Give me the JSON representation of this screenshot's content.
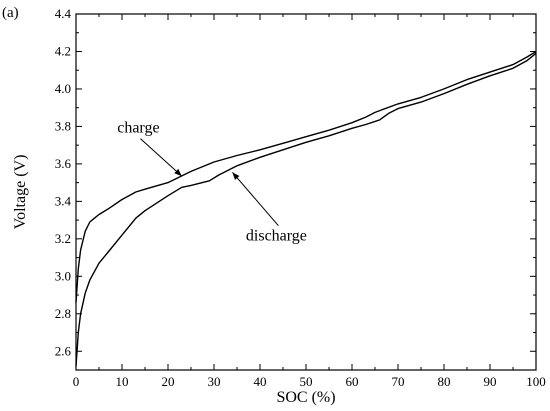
{
  "panel_label": "(a)",
  "chart_data": {
    "type": "line",
    "xlabel": "SOC (%)",
    "ylabel": "Voltage (V)",
    "xlim": [
      0,
      100
    ],
    "ylim": [
      2.5,
      4.4
    ],
    "xticks": [
      0,
      10,
      20,
      30,
      40,
      50,
      60,
      70,
      80,
      90,
      100
    ],
    "yticks": [
      2.6,
      2.8,
      3.0,
      3.2,
      3.4,
      3.6,
      3.8,
      4.0,
      4.2,
      4.4
    ],
    "xtick_labels": [
      "0",
      "10",
      "20",
      "30",
      "40",
      "50",
      "60",
      "70",
      "80",
      "90",
      "100"
    ],
    "ytick_labels": [
      "2.6",
      "2.8",
      "3.0",
      "3.2",
      "3.4",
      "3.6",
      "3.8",
      "4.0",
      "4.2",
      "4.4"
    ],
    "grid": false,
    "series": [
      {
        "x": [
          0,
          0.5,
          1,
          2,
          3,
          4,
          5,
          7,
          10,
          13,
          15,
          20,
          25,
          30,
          35,
          40,
          45,
          50,
          55,
          60,
          63,
          65,
          70,
          75,
          80,
          85,
          90,
          95,
          98,
          100
        ],
        "y": [
          2.86,
          3.04,
          3.14,
          3.24,
          3.29,
          3.31,
          3.33,
          3.36,
          3.41,
          3.45,
          3.465,
          3.5,
          3.56,
          3.61,
          3.645,
          3.675,
          3.71,
          3.745,
          3.78,
          3.82,
          3.85,
          3.875,
          3.92,
          3.955,
          4.0,
          4.05,
          4.09,
          4.13,
          4.17,
          4.2
        ]
      },
      {
        "x": [
          0,
          0.5,
          1,
          2,
          3,
          5,
          7,
          10,
          13,
          15,
          20,
          23,
          25,
          29,
          31,
          35,
          40,
          45,
          50,
          55,
          60,
          63,
          66,
          68,
          70,
          75,
          80,
          85,
          90,
          95,
          98,
          100
        ],
        "y": [
          2.52,
          2.7,
          2.8,
          2.91,
          2.98,
          3.07,
          3.13,
          3.22,
          3.31,
          3.35,
          3.43,
          3.475,
          3.485,
          3.51,
          3.54,
          3.59,
          3.635,
          3.675,
          3.715,
          3.75,
          3.79,
          3.81,
          3.835,
          3.87,
          3.895,
          3.93,
          3.975,
          4.025,
          4.07,
          4.11,
          4.15,
          4.19
        ]
      }
    ],
    "annotations": [
      {
        "text": "charge",
        "arrow_from": [
          14,
          3.735
        ],
        "arrow_to": [
          23,
          3.535
        ]
      },
      {
        "text": "discharge",
        "arrow_from": [
          44,
          3.27
        ],
        "arrow_to": [
          34,
          3.555
        ]
      }
    ]
  }
}
